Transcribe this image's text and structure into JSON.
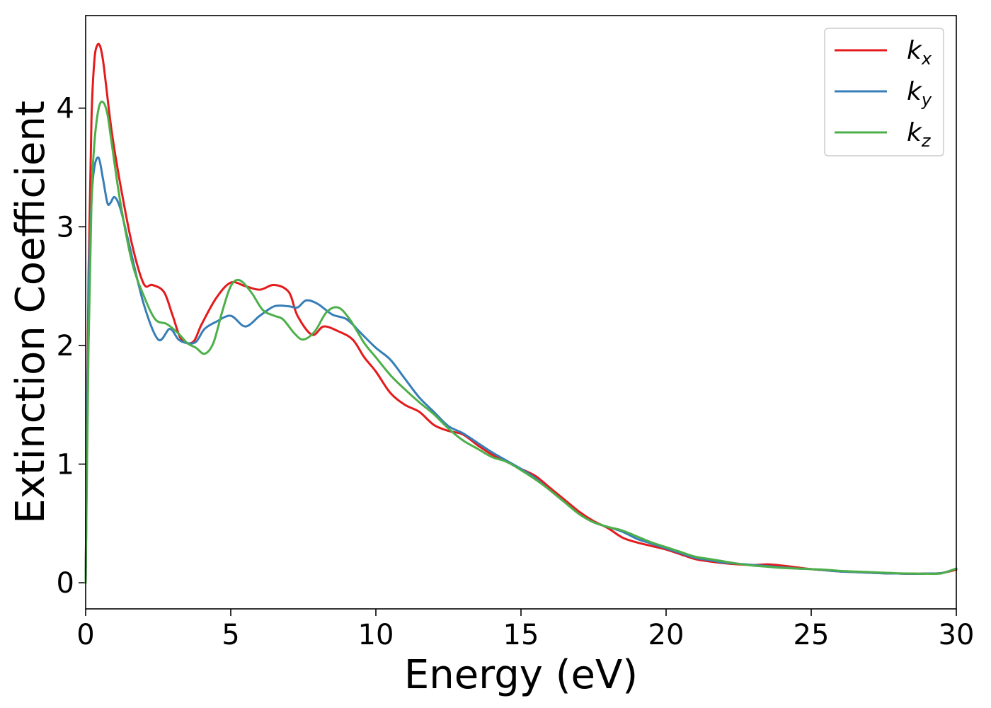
{
  "chart_data": {
    "type": "line",
    "xlabel": "Energy (eV)",
    "ylabel": "Extinction Coefficient",
    "xlim": [
      0,
      30
    ],
    "ylim": [
      -0.22,
      4.78
    ],
    "xticks": [
      0,
      5,
      10,
      15,
      20,
      25,
      30
    ],
    "yticks": [
      0,
      1,
      2,
      3,
      4
    ],
    "grid": false,
    "legend_position": "top-right",
    "series": [
      {
        "name": "k",
        "subscript": "x",
        "color": "#e41a1c",
        "x": [
          0,
          0.1,
          0.2,
          0.3,
          0.4,
          0.5,
          0.6,
          0.7,
          0.9,
          1.2,
          1.6,
          2.0,
          2.3,
          2.7,
          3.0,
          3.3,
          3.7,
          4.0,
          4.5,
          5.0,
          5.5,
          6.0,
          6.5,
          7.0,
          7.3,
          7.8,
          8.2,
          8.7,
          9.2,
          9.6,
          10.0,
          10.5,
          11.0,
          11.5,
          12.0,
          12.5,
          13.0,
          13.5,
          14.0,
          14.5,
          15.0,
          15.5,
          16.0,
          16.5,
          17.0,
          17.5,
          18.0,
          18.5,
          19.0,
          19.5,
          20.0,
          20.5,
          21.0,
          21.5,
          22.0,
          22.5,
          23.0,
          23.5,
          24.0,
          24.5,
          25.0,
          25.5,
          26.0,
          26.5,
          27.0,
          27.5,
          28.0,
          28.5,
          29.0,
          29.5,
          30.0
        ],
        "y": [
          0.0,
          2.6,
          3.9,
          4.4,
          4.53,
          4.52,
          4.4,
          4.2,
          3.8,
          3.35,
          2.85,
          2.52,
          2.51,
          2.45,
          2.25,
          2.05,
          2.03,
          2.18,
          2.4,
          2.53,
          2.5,
          2.47,
          2.51,
          2.45,
          2.25,
          2.09,
          2.16,
          2.12,
          2.05,
          1.9,
          1.78,
          1.6,
          1.5,
          1.44,
          1.33,
          1.28,
          1.25,
          1.16,
          1.08,
          1.02,
          0.96,
          0.9,
          0.8,
          0.7,
          0.6,
          0.52,
          0.46,
          0.38,
          0.34,
          0.31,
          0.28,
          0.24,
          0.2,
          0.18,
          0.165,
          0.155,
          0.15,
          0.155,
          0.145,
          0.13,
          0.115,
          0.105,
          0.095,
          0.09,
          0.085,
          0.08,
          0.078,
          0.076,
          0.078,
          0.082,
          0.11
        ]
      },
      {
        "name": "k",
        "subscript": "y",
        "color": "#377eb8",
        "x": [
          0,
          0.1,
          0.2,
          0.3,
          0.45,
          0.6,
          0.75,
          0.85,
          1.0,
          1.2,
          1.5,
          2.0,
          2.5,
          2.9,
          3.2,
          3.5,
          3.8,
          4.1,
          4.5,
          5.0,
          5.5,
          6.0,
          6.5,
          7.0,
          7.3,
          7.6,
          8.0,
          8.5,
          9.0,
          9.5,
          10.0,
          10.5,
          11.0,
          11.5,
          12.0,
          12.5,
          13.0,
          13.5,
          14.0,
          14.5,
          15.0,
          15.5,
          16.0,
          16.5,
          17.0,
          17.5,
          18.0,
          18.5,
          19.0,
          19.5,
          20.0,
          20.5,
          21.0,
          21.5,
          22.0,
          22.5,
          23.0,
          23.5,
          24.0,
          24.5,
          25.0,
          25.5,
          26.0,
          26.5,
          27.0,
          27.5,
          28.0,
          28.5,
          29.0,
          29.5,
          30.0
        ],
        "y": [
          0.0,
          2.4,
          3.2,
          3.5,
          3.58,
          3.4,
          3.2,
          3.2,
          3.25,
          3.15,
          2.85,
          2.35,
          2.05,
          2.14,
          2.05,
          2.02,
          2.03,
          2.14,
          2.2,
          2.25,
          2.16,
          2.25,
          2.33,
          2.33,
          2.32,
          2.38,
          2.35,
          2.26,
          2.22,
          2.1,
          1.98,
          1.88,
          1.72,
          1.56,
          1.44,
          1.32,
          1.26,
          1.18,
          1.1,
          1.03,
          0.96,
          0.88,
          0.78,
          0.68,
          0.58,
          0.51,
          0.47,
          0.43,
          0.37,
          0.33,
          0.29,
          0.25,
          0.21,
          0.19,
          0.17,
          0.16,
          0.15,
          0.14,
          0.13,
          0.12,
          0.115,
          0.105,
          0.095,
          0.09,
          0.085,
          0.08,
          0.078,
          0.076,
          0.078,
          0.082,
          0.12
        ]
      },
      {
        "name": "k",
        "subscript": "z",
        "color": "#4daf4a",
        "x": [
          0,
          0.1,
          0.2,
          0.3,
          0.45,
          0.6,
          0.75,
          0.9,
          1.2,
          1.6,
          2.0,
          2.4,
          2.8,
          3.2,
          3.5,
          3.8,
          4.1,
          4.4,
          4.7,
          5.0,
          5.3,
          5.7,
          6.1,
          6.5,
          6.8,
          7.2,
          7.5,
          7.9,
          8.3,
          8.7,
          9.1,
          9.6,
          10.0,
          10.5,
          11.0,
          11.5,
          12.0,
          12.5,
          13.0,
          13.5,
          14.0,
          14.5,
          15.0,
          15.5,
          16.0,
          16.5,
          17.0,
          17.5,
          18.0,
          18.5,
          19.0,
          19.5,
          20.0,
          20.5,
          21.0,
          21.5,
          22.0,
          22.5,
          23.0,
          23.5,
          24.0,
          24.5,
          25.0,
          25.5,
          26.0,
          26.5,
          27.0,
          27.5,
          28.0,
          28.5,
          29.0,
          29.5,
          30.0
        ],
        "y": [
          0.0,
          2.0,
          3.2,
          3.7,
          4.0,
          4.05,
          3.95,
          3.7,
          3.2,
          2.7,
          2.42,
          2.22,
          2.18,
          2.1,
          2.02,
          1.98,
          1.93,
          2.02,
          2.28,
          2.5,
          2.55,
          2.45,
          2.3,
          2.25,
          2.22,
          2.1,
          2.05,
          2.12,
          2.28,
          2.32,
          2.22,
          2.02,
          1.9,
          1.75,
          1.63,
          1.52,
          1.42,
          1.3,
          1.2,
          1.13,
          1.06,
          1.02,
          0.95,
          0.87,
          0.78,
          0.68,
          0.58,
          0.51,
          0.47,
          0.44,
          0.39,
          0.34,
          0.3,
          0.26,
          0.22,
          0.2,
          0.18,
          0.16,
          0.145,
          0.135,
          0.125,
          0.12,
          0.115,
          0.11,
          0.1,
          0.095,
          0.09,
          0.085,
          0.08,
          0.078,
          0.076,
          0.08,
          0.12
        ]
      }
    ]
  }
}
